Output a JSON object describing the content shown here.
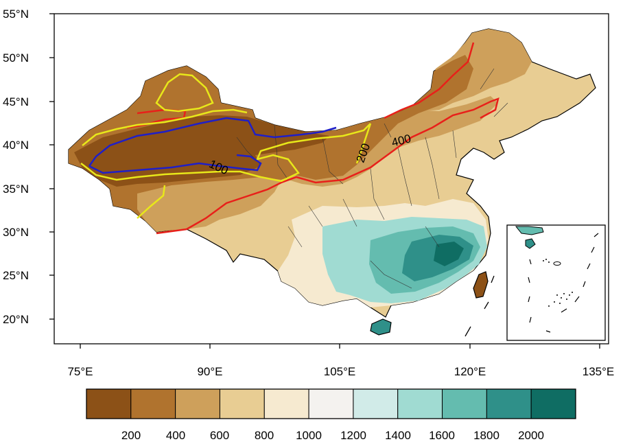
{
  "map": {
    "type": "filled-contour map",
    "region": "China",
    "lat_range": [
      17,
      55
    ],
    "lon_range": [
      72,
      136
    ],
    "lat_ticks": [
      "20°N",
      "25°N",
      "30°N",
      "35°N",
      "40°N",
      "45°N",
      "50°N",
      "55°N"
    ],
    "lon_ticks": [
      "75°E",
      "90°E",
      "105°E",
      "120°E",
      "135°E"
    ],
    "contour_lines": [
      {
        "label": "100",
        "color": "#1f1fc8"
      },
      {
        "label": "200",
        "color": "#e8e81a"
      },
      {
        "label": "400",
        "color": "#e8201a"
      }
    ],
    "inset": "South China Sea"
  },
  "colorbar": {
    "levels": [
      "200",
      "400",
      "600",
      "800",
      "1000",
      "1200",
      "1400",
      "1600",
      "1800",
      "2000"
    ],
    "colors": [
      "#8c5117",
      "#b0732e",
      "#cea05b",
      "#e8cd93",
      "#f6ead0",
      "#f4f2ef",
      "#d1ebe8",
      "#a0dbd2",
      "#64bcaf",
      "#2f9089",
      "#0f6d63"
    ]
  }
}
